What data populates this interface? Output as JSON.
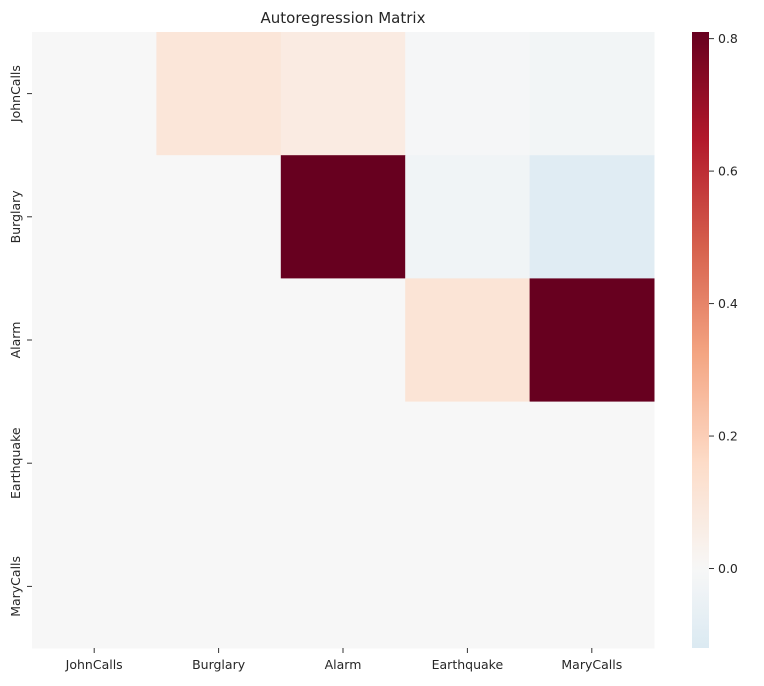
{
  "chart_data": {
    "type": "heatmap",
    "title": "Autoregression Matrix",
    "xlabel": "",
    "ylabel": "",
    "x_categories": [
      "JohnCalls",
      "Burglary",
      "Alarm",
      "Earthquake",
      "MaryCalls"
    ],
    "y_categories": [
      "JohnCalls",
      "Burglary",
      "Alarm",
      "Earthquake",
      "MaryCalls"
    ],
    "values": [
      [
        0.0,
        0.1,
        0.07,
        -0.01,
        -0.02
      ],
      [
        0.0,
        0.0,
        0.81,
        -0.03,
        -0.1
      ],
      [
        0.0,
        0.0,
        0.0,
        0.11,
        0.81
      ],
      [
        0.0,
        0.0,
        0.0,
        0.0,
        0.0
      ],
      [
        0.0,
        0.0,
        0.0,
        0.0,
        0.0
      ]
    ],
    "colormap": "RdBu_r",
    "center": 0.0,
    "vmin": -0.12,
    "vmax": 0.81,
    "colorbar_ticks": [
      0.0,
      0.2,
      0.4,
      0.6,
      0.8
    ],
    "colorbar_tick_labels": [
      "0.0",
      "0.2",
      "0.4",
      "0.6",
      "0.8"
    ],
    "grid": false
  }
}
